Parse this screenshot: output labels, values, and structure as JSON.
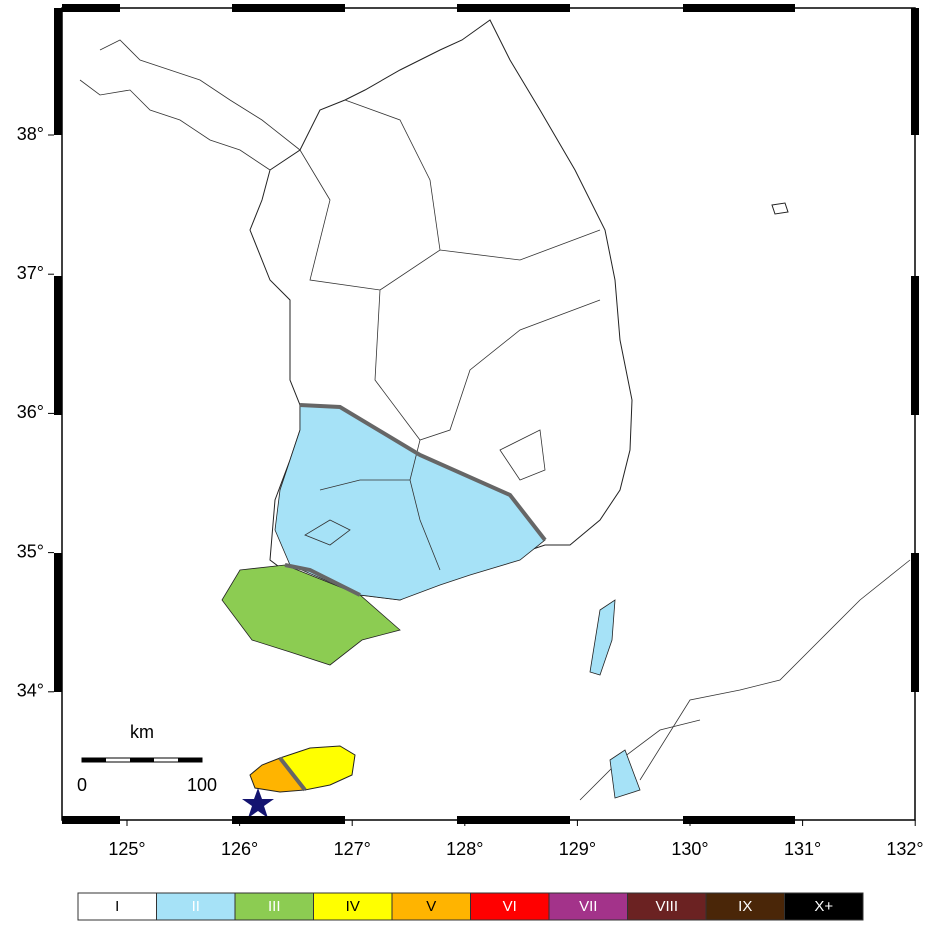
{
  "map": {
    "lon_ticks": [
      {
        "value": 125,
        "label": "125°"
      },
      {
        "value": 126,
        "label": "126°"
      },
      {
        "value": 127,
        "label": "127°"
      },
      {
        "value": 128,
        "label": "128°"
      },
      {
        "value": 129,
        "label": "129°"
      },
      {
        "value": 130,
        "label": "130°"
      },
      {
        "value": 131,
        "label": "131°"
      },
      {
        "value": 132,
        "label": "132°"
      }
    ],
    "lat_ticks": [
      {
        "value": 34,
        "label": "34°"
      },
      {
        "value": 35,
        "label": "35°"
      },
      {
        "value": 36,
        "label": "36°"
      },
      {
        "value": 37,
        "label": "37°"
      },
      {
        "value": 38,
        "label": "38°"
      }
    ],
    "scale_bar": {
      "unit": "km",
      "labels": [
        "0",
        "100"
      ]
    },
    "legend": {
      "classes": [
        {
          "label": "I",
          "color": "#ffffff",
          "text_color": "#000000"
        },
        {
          "label": "II",
          "color": "#a6e2f7",
          "text_color": "#ffffff"
        },
        {
          "label": "III",
          "color": "#8ccc52",
          "text_color": "#ffffff"
        },
        {
          "label": "IV",
          "color": "#ffff00",
          "text_color": "#000000"
        },
        {
          "label": "V",
          "color": "#ffb400",
          "text_color": "#000000"
        },
        {
          "label": "VI",
          "color": "#ff0000",
          "text_color": "#ffffff"
        },
        {
          "label": "VII",
          "color": "#a3338a",
          "text_color": "#ffffff"
        },
        {
          "label": "VIII",
          "color": "#6b2222",
          "text_color": "#ffffff"
        },
        {
          "label": "IX",
          "color": "#4a2608",
          "text_color": "#ffffff"
        },
        {
          "label": "X+",
          "color": "#000000",
          "text_color": "#ffffff"
        }
      ]
    }
  }
}
